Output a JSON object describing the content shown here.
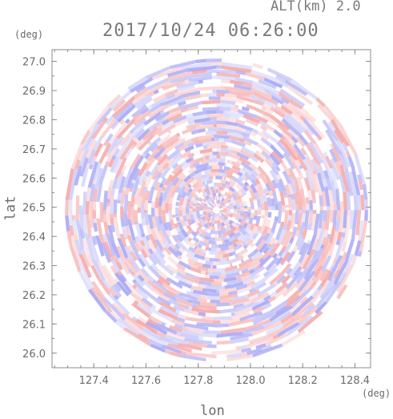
{
  "header": {
    "altitude_label": "ALT(km) 2.0",
    "timestamp": "2017/10/24 06:26:00"
  },
  "chart_data": {
    "type": "heatmap",
    "title": "2017/10/24 06:26:00",
    "subtitle": "ALT(km) 2.0",
    "xlabel": "lon",
    "ylabel": "lat",
    "x_unit": "(deg)",
    "y_unit": "(deg)",
    "xlim": [
      127.24,
      128.46
    ],
    "ylim": [
      25.95,
      27.04
    ],
    "x_ticks": [
      "127.4",
      "127.6",
      "127.8",
      "128.0",
      "128.2",
      "128.4"
    ],
    "y_ticks": [
      "26.0",
      "26.1",
      "26.2",
      "26.3",
      "26.4",
      "26.5",
      "26.6",
      "26.7",
      "26.8",
      "26.9",
      "27.0"
    ],
    "center": {
      "lon": 127.87,
      "lat": 26.49
    },
    "range_radius_deg_lat": 0.52,
    "colors": {
      "positive": "#f4a0a0",
      "negative": "#a0a0f4",
      "frame": "#8c8c8c"
    }
  }
}
